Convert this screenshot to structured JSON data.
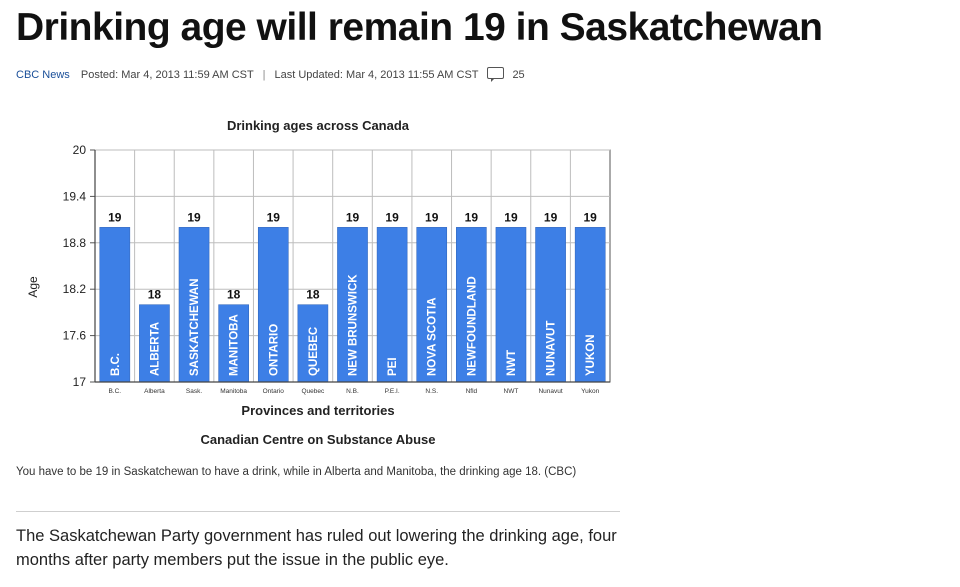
{
  "headline": "Drinking age will remain 19 in Saskatchewan",
  "byline": {
    "source": "CBC News",
    "posted": "Posted: Mar 4, 2013 11:59 AM CST",
    "updated": "Last Updated: Mar 4, 2013 11:55 AM CST",
    "comment_count": "25",
    "comment_icon": "comment-icon"
  },
  "chart_data": {
    "type": "bar",
    "title": "Drinking ages across Canada",
    "xlabel": "Provinces and territories",
    "ylabel": "Age",
    "source": "Canadian Centre on Substance Abuse",
    "ylim": [
      17,
      20
    ],
    "yticks": [
      "17",
      "17.6",
      "18.2",
      "18.8",
      "19.4",
      "20"
    ],
    "grid": true,
    "bar_color": "#3d7fe6",
    "categories": [
      "B.C.",
      "Alberta",
      "Sask.",
      "Manitoba",
      "Ontario",
      "Quebec",
      "N.B.",
      "P.E.I.",
      "N.S.",
      "Nfld",
      "NWT",
      "Nunavut",
      "Yukon"
    ],
    "bar_labels": [
      "B.C.",
      "ALBERTA",
      "SASKATCHEWAN",
      "MANITOBA",
      "ONTARIO",
      "QUEBEC",
      "NEW BRUNSWICK",
      "PEI",
      "NOVA SCOTIA",
      "NEWFOUNDLAND",
      "NWT",
      "NUNAVUT",
      "YUKON"
    ],
    "values": [
      19,
      18,
      19,
      18,
      19,
      18,
      19,
      19,
      19,
      19,
      19,
      19,
      19
    ],
    "value_labels": [
      "19",
      "18",
      "19",
      "18",
      "19",
      "18",
      "19",
      "19",
      "19",
      "19",
      "19",
      "19",
      "19"
    ]
  },
  "caption": "You have to be 19 in Saskatchewan to have a drink, while in Alberta and Manitoba, the drinking age 18. (CBC)",
  "lede": "The Saskatchewan Party government has ruled out lowering the drinking age, four months after party members put the issue in the public eye."
}
